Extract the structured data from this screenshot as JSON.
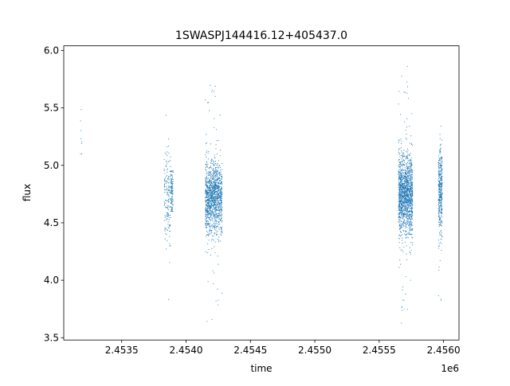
{
  "chart_data": {
    "type": "scatter",
    "title": "1SWASPJ144416.12+405437.0",
    "xlabel": "time",
    "ylabel": "flux",
    "x_offset_label": "1e6",
    "x_ticks": [
      2453500,
      2454000,
      2454500,
      2455000,
      2455500,
      2456000
    ],
    "x_tick_labels": [
      "2.4535",
      "2.4540",
      "2.4545",
      "2.4550",
      "2.4555",
      "2.4560"
    ],
    "y_ticks": [
      3.5,
      4.0,
      4.5,
      5.0,
      5.5,
      6.0
    ],
    "y_tick_labels": [
      "3.5",
      "4.0",
      "4.5",
      "5.0",
      "5.5",
      "6.0"
    ],
    "xlim": [
      2453050,
      2456120
    ],
    "ylim": [
      3.48,
      6.04
    ],
    "marker_color": "#1f77b4",
    "grid": false,
    "legend": "none",
    "clusters": [
      {
        "x_min": 2453180,
        "x_max": 2453190,
        "y_center": 5.35,
        "y_spread": 0.2,
        "y_min": 5.1,
        "y_max": 5.72
      },
      {
        "x_min": 2453830,
        "x_max": 2453880,
        "y_center": 4.72,
        "y_spread": 0.22,
        "y_min": 3.72,
        "y_max": 5.92
      },
      {
        "x_min": 2453880,
        "x_max": 2453900,
        "y_center": 4.8,
        "y_spread": 0.12,
        "y_min": 4.6,
        "y_max": 4.95
      },
      {
        "x_min": 2454150,
        "x_max": 2454280,
        "y_center": 4.72,
        "y_spread": 0.16,
        "y_min": 3.62,
        "y_max": 5.87
      },
      {
        "x_min": 2455650,
        "x_max": 2455760,
        "y_center": 4.74,
        "y_spread": 0.17,
        "y_min": 3.6,
        "y_max": 5.9
      },
      {
        "x_min": 2455960,
        "x_max": 2455990,
        "y_center": 4.78,
        "y_spread": 0.2,
        "y_min": 3.62,
        "y_max": 5.68
      }
    ]
  }
}
